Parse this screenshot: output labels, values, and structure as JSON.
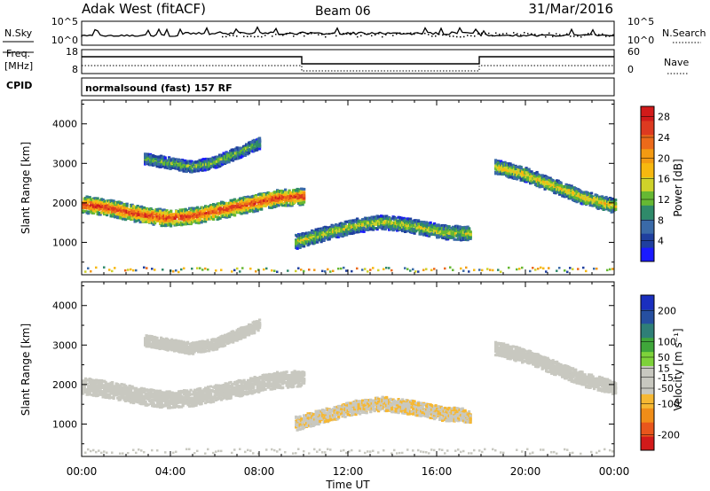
{
  "header": {
    "station": "Adak West (fitACF)",
    "beam": "Beam 06",
    "date": "31/Mar/2016"
  },
  "labels": {
    "nsky": "N.Sky",
    "nsearch": "N.Search",
    "freq": "Freq.",
    "mhz": "[MHz]",
    "nave": "Nave",
    "cpid": "CPID",
    "cpid_value": "normalsound (fast) 157 RF"
  },
  "noise_axis": {
    "ticks": [
      "10^5",
      "10^0"
    ]
  },
  "freq_axis": {
    "left_ticks": [
      "18",
      "8"
    ],
    "right_ticks": [
      "60",
      "0"
    ]
  },
  "colors": {
    "power": [
      "#1a1aff",
      "#1f3f9f",
      "#3a6aa8",
      "#2f8a6a",
      "#66b833",
      "#cfd22a",
      "#f7b80f",
      "#f39a12",
      "#ec6a1a",
      "#dd3a20",
      "#d21a1a"
    ],
    "velocity": [
      "#d21a1a",
      "#e8561c",
      "#f08d18",
      "#f6b833",
      "#c8c8c0",
      "#c8c8c0",
      "#7ed23a",
      "#3fa63a",
      "#2f7f77",
      "#264fa0",
      "#1a2fbf"
    ]
  },
  "chart_data": [
    {
      "type": "heatmap",
      "title": "",
      "xlabel": "",
      "ylabel": "Slant Range [km]",
      "x_range_hours": [
        0,
        24
      ],
      "ylim": [
        180,
        4600
      ],
      "yticks": [
        1000,
        2000,
        3000,
        4000
      ],
      "colorbar": {
        "label": "Power [dB]",
        "range": [
          0,
          30
        ],
        "ticks": [
          4,
          8,
          12,
          16,
          20,
          24,
          28
        ]
      },
      "regions": [
        {
          "name": "band-2000km",
          "t_start": 0.0,
          "t_end": 10.0,
          "r_center": [
            1950,
            1850,
            1700,
            1600,
            1650,
            1800,
            1950,
            2100,
            2150
          ],
          "value": 22
        },
        {
          "name": "band-3000km",
          "t_start": 2.8,
          "t_end": 8.0,
          "r_center": [
            3100,
            3000,
            2900,
            3000,
            3250,
            3500
          ],
          "value": 10
        },
        {
          "name": "band-1300km",
          "t_start": 9.6,
          "t_end": 17.5,
          "r_center": [
            1000,
            1200,
            1400,
            1500,
            1400,
            1250,
            1200
          ],
          "value": 12
        },
        {
          "name": "band-evening",
          "t_start": 18.6,
          "t_end": 24.0,
          "r_center": [
            2900,
            2700,
            2400,
            2100,
            1900
          ],
          "value": 14
        }
      ]
    },
    {
      "type": "heatmap",
      "title": "",
      "xlabel": "Time UT",
      "ylabel": "Slant Range [km]",
      "x_range_hours": [
        0,
        24
      ],
      "ylim": [
        180,
        4600
      ],
      "yticks": [
        1000,
        2000,
        3000,
        4000
      ],
      "xticks": [
        "00:00",
        "04:00",
        "08:00",
        "12:00",
        "16:00",
        "20:00",
        "00:00"
      ],
      "colorbar": {
        "label": "Velocity [m s^-1]",
        "range": [
          -250,
          250
        ],
        "ticks": [
          200,
          100,
          50,
          15,
          -15,
          -50,
          -100,
          -200
        ]
      },
      "regions": [
        {
          "name": "band-2000km",
          "t_start": 0.0,
          "t_end": 10.0,
          "value": 0
        },
        {
          "name": "band-3000km",
          "t_start": 2.8,
          "t_end": 8.0,
          "value": 0
        },
        {
          "name": "band-1300km",
          "t_start": 9.6,
          "t_end": 17.5,
          "value": -50
        },
        {
          "name": "band-evening",
          "t_start": 18.6,
          "t_end": 24.0,
          "value": 0
        }
      ]
    }
  ]
}
